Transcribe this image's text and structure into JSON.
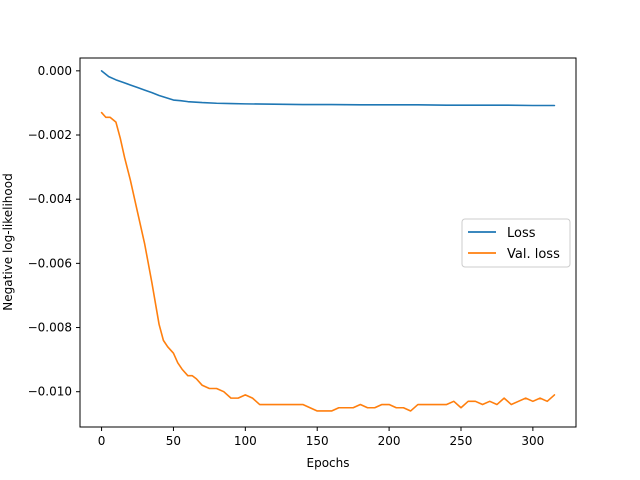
{
  "chart_data": {
    "type": "line",
    "title": "",
    "xlabel": "Epochs",
    "ylabel": "Negative log-likelihood",
    "xlim": [
      -15,
      330
    ],
    "ylim": [
      -0.0111,
      0.0004
    ],
    "xticks": [
      0,
      50,
      100,
      150,
      200,
      250,
      300
    ],
    "xtick_labels": [
      "0",
      "50",
      "100",
      "150",
      "200",
      "250",
      "300"
    ],
    "yticks": [
      0.0,
      -0.002,
      -0.004,
      -0.006,
      -0.008,
      -0.01
    ],
    "ytick_labels": [
      "0.000",
      "−0.002",
      "−0.004",
      "−0.006",
      "−0.008",
      "−0.010"
    ],
    "grid": false,
    "legend_position": "center-right",
    "series": [
      {
        "name": "Loss",
        "color": "#1f77b4",
        "x": [
          0,
          5,
          10,
          15,
          20,
          25,
          30,
          35,
          40,
          45,
          50,
          55,
          60,
          70,
          80,
          90,
          100,
          120,
          140,
          160,
          180,
          200,
          220,
          240,
          260,
          280,
          300,
          315
        ],
        "y": [
          0.0,
          -0.00018,
          -0.00028,
          -0.00036,
          -0.00044,
          -0.00052,
          -0.0006,
          -0.00068,
          -0.00077,
          -0.00084,
          -0.00091,
          -0.00093,
          -0.00096,
          -0.00099,
          -0.00101,
          -0.00102,
          -0.00103,
          -0.00104,
          -0.00105,
          -0.00105,
          -0.00106,
          -0.00106,
          -0.00106,
          -0.00107,
          -0.00107,
          -0.00107,
          -0.00108,
          -0.00108
        ]
      },
      {
        "name": "Val. loss",
        "color": "#ff7f0e",
        "x": [
          0,
          3,
          6,
          10,
          13,
          16,
          20,
          25,
          30,
          35,
          40,
          43,
          46,
          50,
          53,
          56,
          60,
          63,
          66,
          70,
          75,
          80,
          85,
          90,
          95,
          100,
          105,
          110,
          115,
          120,
          125,
          130,
          135,
          140,
          145,
          150,
          155,
          160,
          165,
          170,
          175,
          180,
          185,
          190,
          195,
          200,
          205,
          210,
          215,
          220,
          225,
          230,
          235,
          240,
          245,
          250,
          255,
          260,
          265,
          270,
          275,
          280,
          285,
          290,
          295,
          300,
          305,
          310,
          315
        ],
        "y": [
          -0.0013,
          -0.00145,
          -0.00145,
          -0.0016,
          -0.0021,
          -0.0027,
          -0.0034,
          -0.0044,
          -0.0054,
          -0.0066,
          -0.0079,
          -0.0084,
          -0.0086,
          -0.0088,
          -0.0091,
          -0.0093,
          -0.0095,
          -0.0095,
          -0.0096,
          -0.0098,
          -0.0099,
          -0.0099,
          -0.01,
          -0.0102,
          -0.0102,
          -0.0101,
          -0.0102,
          -0.0104,
          -0.0104,
          -0.0104,
          -0.0104,
          -0.0104,
          -0.0104,
          -0.0104,
          -0.0105,
          -0.0106,
          -0.0106,
          -0.0106,
          -0.0105,
          -0.0105,
          -0.0105,
          -0.0104,
          -0.0105,
          -0.0105,
          -0.0104,
          -0.0104,
          -0.0105,
          -0.0105,
          -0.0106,
          -0.0104,
          -0.0104,
          -0.0104,
          -0.0104,
          -0.0104,
          -0.0103,
          -0.0105,
          -0.0103,
          -0.0103,
          -0.0104,
          -0.0103,
          -0.0104,
          -0.0102,
          -0.0104,
          -0.0103,
          -0.0102,
          -0.0103,
          -0.0102,
          -0.0103,
          -0.0101
        ]
      }
    ]
  }
}
